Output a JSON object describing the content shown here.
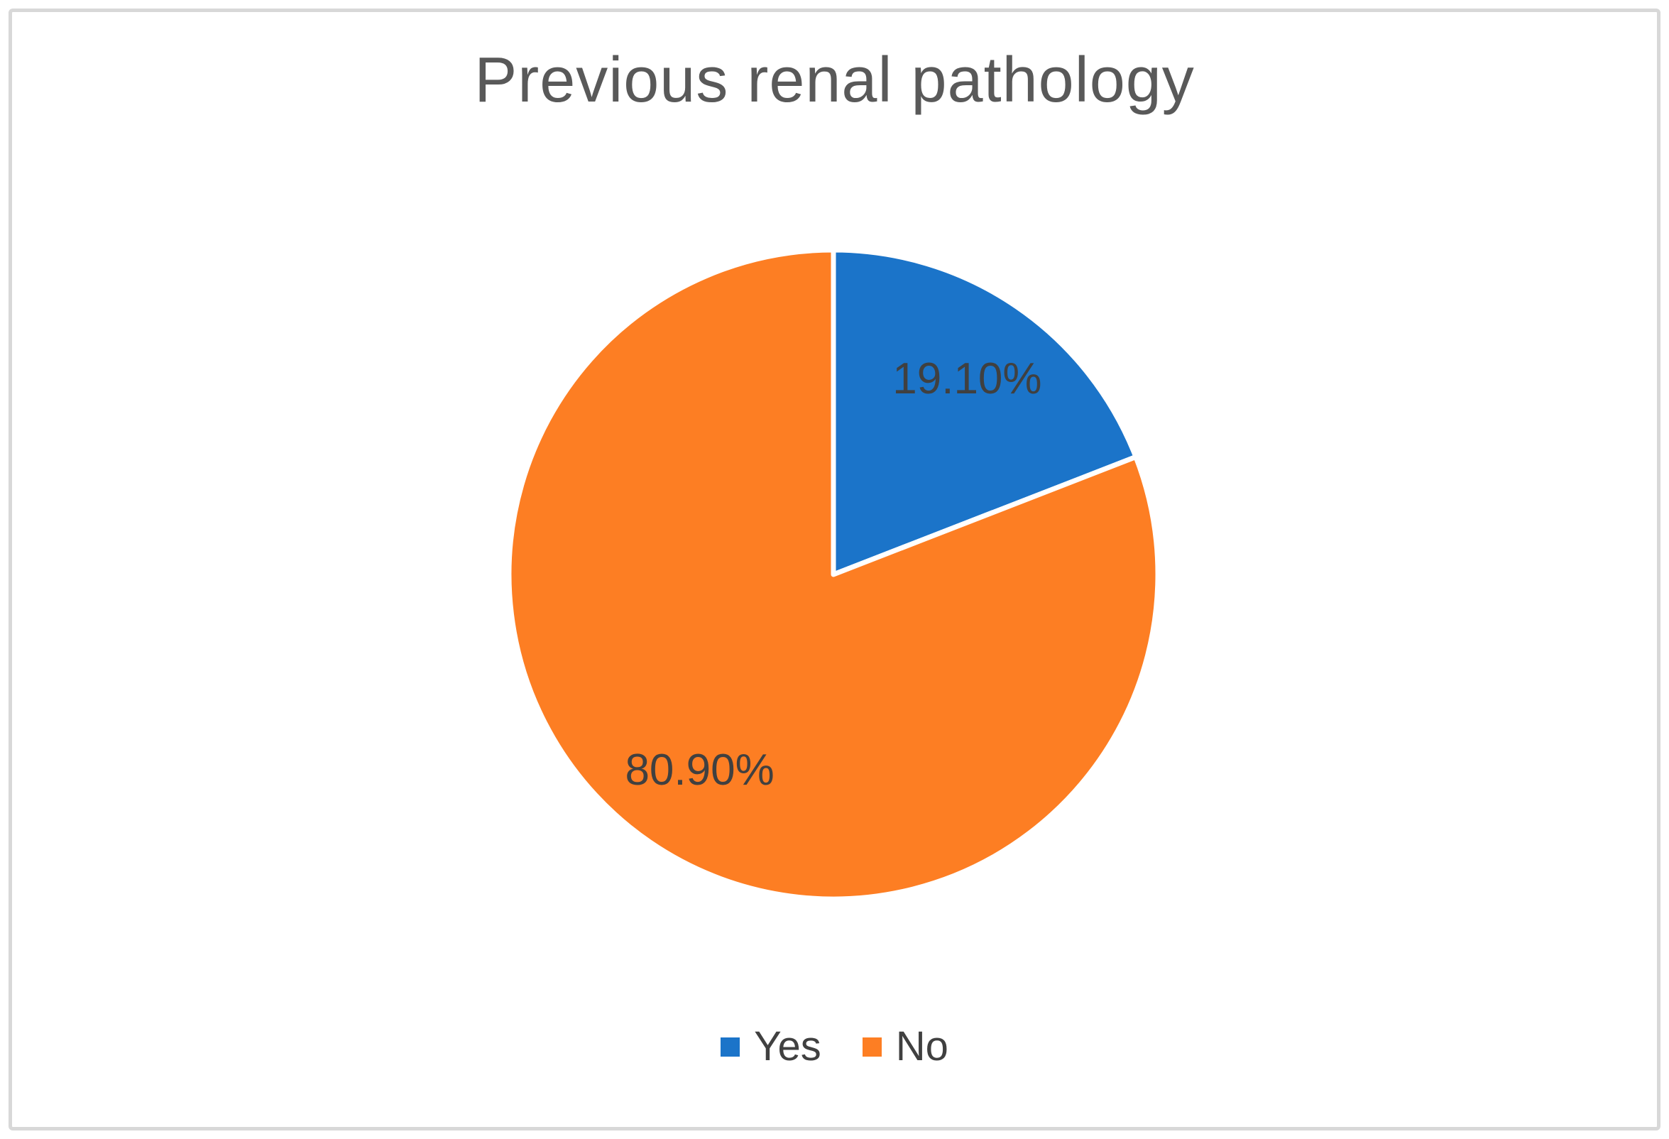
{
  "title": "Previous renal pathology",
  "chart_data": {
    "type": "pie",
    "title": "Previous renal pathology",
    "categories": [
      "Yes",
      "No"
    ],
    "values": [
      19.1,
      80.9
    ],
    "data_labels": [
      "19.10%",
      "80.90%"
    ],
    "colors": [
      "#1b74c9",
      "#fd7e23"
    ],
    "label_color": "#404040",
    "title_color": "#595959",
    "slice_border_color": "#ffffff",
    "start_angle_deg": 0,
    "direction": "clockwise",
    "legend_position": "bottom",
    "grid": false
  },
  "legend": {
    "items": [
      {
        "label": "Yes",
        "color": "#1b74c9"
      },
      {
        "label": "No",
        "color": "#fd7e23"
      }
    ]
  },
  "frame": {
    "border_color": "#d8d8d8"
  }
}
